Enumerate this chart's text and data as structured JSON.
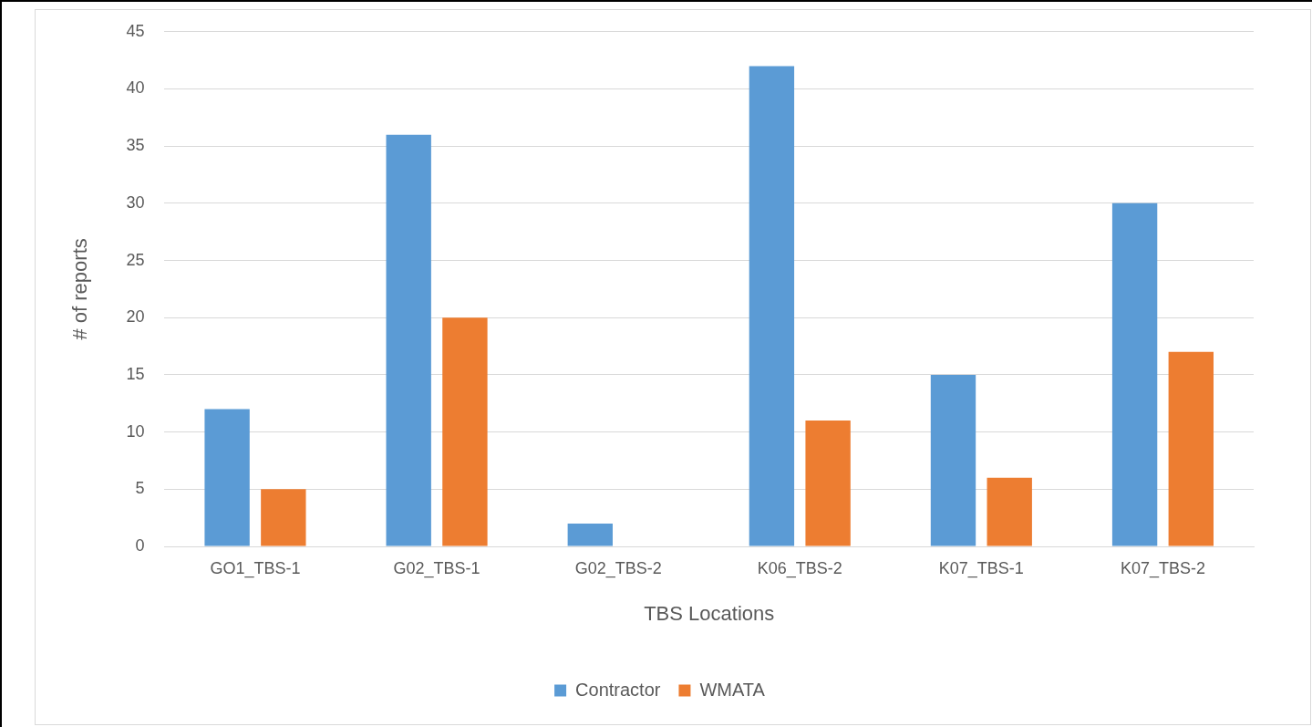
{
  "chart_data": {
    "type": "bar",
    "xlabel": "TBS Locations",
    "ylabel": "# of reports",
    "categories": [
      "GO1_TBS-1",
      "G02_TBS-1",
      "G02_TBS-2",
      "K06_TBS-2",
      "K07_TBS-1",
      "K07_TBS-2"
    ],
    "series": [
      {
        "name": "Contractor",
        "color": "#5b9bd5",
        "values": [
          12,
          36,
          2,
          42,
          15,
          30
        ]
      },
      {
        "name": "WMATA",
        "color": "#ed7d31",
        "values": [
          5,
          20,
          0,
          11,
          6,
          17
        ]
      }
    ],
    "ylim": [
      0,
      45
    ],
    "yticks": [
      0,
      5,
      10,
      15,
      20,
      25,
      30,
      35,
      40,
      45
    ],
    "grid": "y",
    "legend": "bottom"
  }
}
